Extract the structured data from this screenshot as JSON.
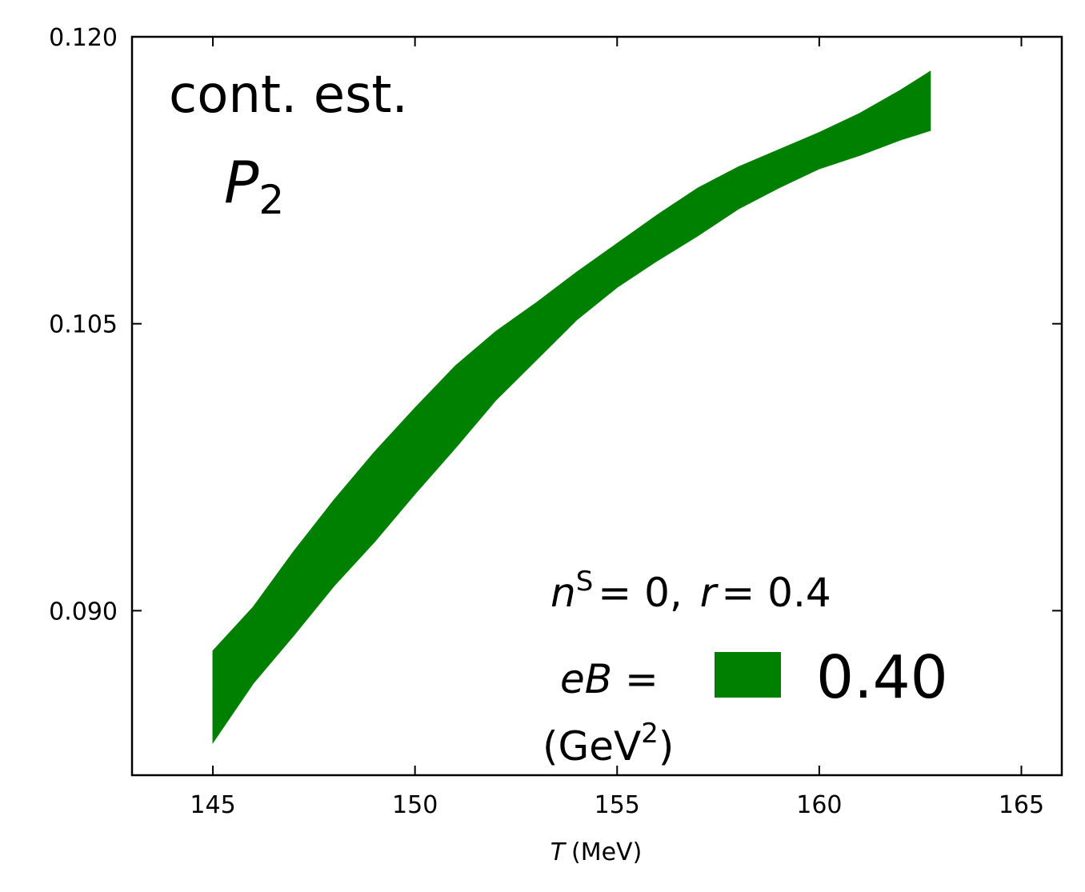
{
  "chart_data": {
    "type": "band",
    "annotations": {
      "method": "cont. est.",
      "observable": {
        "symbol": "P",
        "subscript": "2"
      },
      "condition": {
        "n": "n",
        "n_sup": "S",
        "n_eq": "= 0,",
        "r": "r",
        "r_eq": "= 0.4"
      }
    },
    "legend_title": "eB =",
    "legend_units": {
      "open": "(GeV",
      "sup": "2",
      "close": ")"
    },
    "x_label": {
      "symbol": "T",
      "unit": "(MeV)"
    },
    "x": [
      145,
      146,
      147,
      148,
      149,
      150,
      151,
      152,
      153,
      154,
      155,
      156,
      157,
      158,
      159,
      160,
      161,
      162,
      162.75
    ],
    "series": [
      {
        "name": "0.40",
        "color": "#008000",
        "upper": [
          0.0879,
          0.0902,
          0.0931,
          0.0958,
          0.0983,
          0.1006,
          0.1028,
          0.1046,
          0.1061,
          0.1077,
          0.1092,
          0.1107,
          0.1121,
          0.1132,
          0.1141,
          0.115,
          0.116,
          0.1172,
          0.1182
        ],
        "lower": [
          0.0831,
          0.0862,
          0.0887,
          0.0913,
          0.0936,
          0.0961,
          0.0985,
          0.101,
          0.1031,
          0.1052,
          0.1069,
          0.1083,
          0.1096,
          0.111,
          0.1121,
          0.1131,
          0.1138,
          0.1146,
          0.1151
        ]
      }
    ],
    "xlim": [
      143,
      166
    ],
    "ylim": [
      0.0814,
      0.12
    ],
    "xticks": [
      145,
      150,
      155,
      160,
      165
    ],
    "yticks": [
      {
        "value": 0.12,
        "label": "0.120"
      },
      0.105,
      {
        "value": 0.09,
        "label": "0.090"
      }
    ],
    "grid": false
  }
}
